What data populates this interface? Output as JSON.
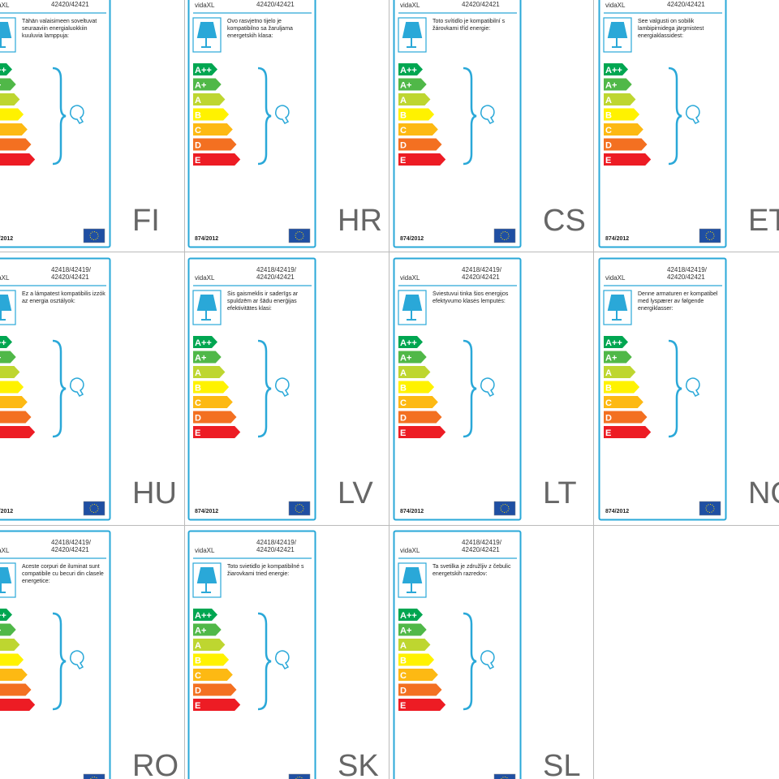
{
  "label": {
    "brand": "vidaXL",
    "model_line1": "42418/42419/",
    "model_line2": "42420/42421",
    "regulation": "874/2012",
    "classes": [
      "A++",
      "A+",
      "A",
      "B",
      "C",
      "D",
      "E"
    ]
  },
  "cells": [
    {
      "code": "FI",
      "text": "Tähän valaisimeen soveltuvat seuraaviin energialuokkiin kuuluvia lamppuja:"
    },
    {
      "code": "HR",
      "text": "Ovo rasvjetno tijelo je kompatibilno sa žaruljama energetskih klasa:"
    },
    {
      "code": "CS",
      "text": "Toto svítidlo je kompatibilní s žárovkami tříd energie:"
    },
    {
      "code": "ET",
      "text": "See valgusti on sobilik lambipirnidega järgmistest energiaklassidest:"
    },
    {
      "code": "HU",
      "text": "Ez a lámpatest kompatibilis izzók az energia osztályok:"
    },
    {
      "code": "LV",
      "text": "Šis gaismeklis ir saderīgs ar spuldzēm ar šādu enerģijas efektivitātes klasi:"
    },
    {
      "code": "LT",
      "text": "Šviestuvui tinka šios energijos efektyvumo klasės lemputės:"
    },
    {
      "code": "NO",
      "text": "Denne armaturen er kompatibel med lyspærer av følgende energiklasser:"
    },
    {
      "code": "RO",
      "text": "Aceste corpuri de iluminat sunt compatibile cu becuri din clasele energetice:"
    },
    {
      "code": "SK",
      "text": "Toto svietidlo je kompatibilné s žiarovkami tried energie:"
    },
    {
      "code": "SL",
      "text": "Ta svetilka je združljiv z čebulic energetskih razredov:"
    }
  ]
}
